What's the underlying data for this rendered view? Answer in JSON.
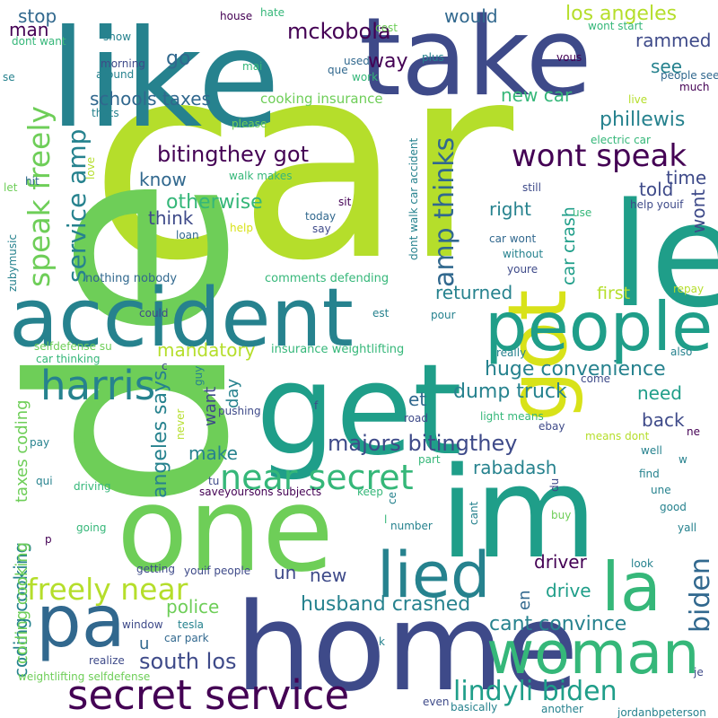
{
  "palette": {
    "dark_purple": "#440154",
    "indigo": "#3e4a89",
    "blue": "#31688e",
    "teal": "#26828e",
    "teal_green": "#1f9e89",
    "green": "#35b779",
    "light_green": "#6ece58",
    "lime": "#b5de2b",
    "yellow": "#fde725"
  },
  "words": [
    {
      "text": "car",
      "color": "#b5de2b"
    },
    {
      "text": "de",
      "color": "#6ece58"
    },
    {
      "text": "home",
      "color": "#3e4a89"
    },
    {
      "text": "one",
      "color": "#6ece58"
    },
    {
      "text": "get",
      "color": "#1f9e89"
    },
    {
      "text": "like",
      "color": "#26828e"
    },
    {
      "text": "take",
      "color": "#3e4a89"
    },
    {
      "text": "le",
      "color": "#1f9e89"
    },
    {
      "text": "im",
      "color": "#1f9e89"
    },
    {
      "text": "accident",
      "color": "#26828e"
    },
    {
      "text": "got",
      "color": "#d8e219"
    },
    {
      "text": "people",
      "color": "#1f9e89"
    },
    {
      "text": "woman",
      "color": "#35b779"
    },
    {
      "text": "pa",
      "color": "#31688e"
    },
    {
      "text": "la",
      "color": "#35b779"
    },
    {
      "text": "lied",
      "color": "#26828e"
    },
    {
      "text": "secret service",
      "color": "#440154"
    },
    {
      "text": "harris",
      "color": "#26828e"
    },
    {
      "text": "near secret",
      "color": "#35b779"
    },
    {
      "text": "speak freely",
      "color": "#6ece58"
    },
    {
      "text": "freely near",
      "color": "#b5de2b"
    },
    {
      "text": "wont speak",
      "color": "#440154"
    },
    {
      "text": "amp thinks",
      "color": "#31688e"
    },
    {
      "text": "biden",
      "color": "#31688e"
    },
    {
      "text": "lindyli biden",
      "color": "#1f9e89"
    },
    {
      "text": "service amp",
      "color": "#26828e"
    },
    {
      "text": "majors bitingthey",
      "color": "#3e4a89"
    },
    {
      "text": "bitingthey got",
      "color": "#440154"
    },
    {
      "text": "mckobola",
      "color": "#440154"
    },
    {
      "text": "south los",
      "color": "#3e4a89"
    },
    {
      "text": "husband crashed",
      "color": "#26828e"
    },
    {
      "text": "huge convenience",
      "color": "#26828e"
    },
    {
      "text": "cant convince",
      "color": "#26828e"
    },
    {
      "text": "dump truck",
      "color": "#26828e"
    },
    {
      "text": "angeles says",
      "color": "#26828e"
    },
    {
      "text": "coding cooking",
      "color": "#26828e"
    },
    {
      "text": "schools taxes",
      "color": "#31688e"
    },
    {
      "text": "phillewis",
      "color": "#26828e"
    },
    {
      "text": "los angeles",
      "color": "#b5de2b"
    },
    {
      "text": "otherwise",
      "color": "#35b779"
    },
    {
      "text": "mandatory",
      "color": "#b5de2b"
    },
    {
      "text": "rabadash",
      "color": "#26828e"
    },
    {
      "text": "returned",
      "color": "#26828e"
    },
    {
      "text": "driver",
      "color": "#440154"
    },
    {
      "text": "police",
      "color": "#6ece58"
    },
    {
      "text": "new car",
      "color": "#35b779"
    },
    {
      "text": "car crash",
      "color": "#1f9e89"
    },
    {
      "text": "first",
      "color": "#b5de2b"
    },
    {
      "text": "rammed",
      "color": "#3e4a89"
    },
    {
      "text": "would",
      "color": "#31688e"
    },
    {
      "text": "stop",
      "color": "#31688e"
    },
    {
      "text": "man",
      "color": "#440154"
    },
    {
      "text": "go",
      "color": "#31688e"
    },
    {
      "text": "way",
      "color": "#440154"
    },
    {
      "text": "see",
      "color": "#26828e"
    },
    {
      "text": "know",
      "color": "#31688e"
    },
    {
      "text": "think",
      "color": "#3e4a89"
    },
    {
      "text": "right",
      "color": "#26828e"
    },
    {
      "text": "told",
      "color": "#3e4a89"
    },
    {
      "text": "time",
      "color": "#3e4a89"
    },
    {
      "text": "wont",
      "color": "#3e4a89"
    },
    {
      "text": "need",
      "color": "#1f9e89"
    },
    {
      "text": "back",
      "color": "#3e4a89"
    },
    {
      "text": "et",
      "color": "#31688e"
    },
    {
      "text": "make",
      "color": "#26828e"
    },
    {
      "text": "day",
      "color": "#26828e"
    },
    {
      "text": "want",
      "color": "#3e4a89"
    },
    {
      "text": "new",
      "color": "#3e4a89"
    },
    {
      "text": "un",
      "color": "#3e4a89"
    },
    {
      "text": "drive",
      "color": "#1f9e89"
    },
    {
      "text": "u",
      "color": "#31688e"
    },
    {
      "text": "en",
      "color": "#31688e"
    },
    {
      "text": "taxes coding",
      "color": "#6ece58"
    },
    {
      "text": "coding cooking",
      "color": "#6ece58"
    },
    {
      "text": "cooking insurance",
      "color": "#6ece58"
    },
    {
      "text": "nothing nobody",
      "color": "#31688e"
    },
    {
      "text": "comments defending",
      "color": "#35b779"
    },
    {
      "text": "insurance weightlifting",
      "color": "#35b779"
    },
    {
      "text": "weightlifting selfdefense",
      "color": "#6ece58"
    },
    {
      "text": "selfdefense su",
      "color": "#6ece58"
    },
    {
      "text": "car thinking",
      "color": "#35b779"
    },
    {
      "text": "saveyoursons subjects",
      "color": "#440154"
    },
    {
      "text": "jordanbpeterson",
      "color": "#26828e"
    },
    {
      "text": "dont walk car accident",
      "color": "#26828e"
    },
    {
      "text": "electric car",
      "color": "#35b779"
    },
    {
      "text": "car wont",
      "color": "#31688e"
    },
    {
      "text": "walk makes",
      "color": "#35b779"
    },
    {
      "text": "light means",
      "color": "#35b779"
    },
    {
      "text": "means dont",
      "color": "#b5de2b"
    },
    {
      "text": "youif people",
      "color": "#3e4a89"
    },
    {
      "text": "help youif",
      "color": "#3e4a89"
    },
    {
      "text": "wont start",
      "color": "#35b779"
    },
    {
      "text": "people see",
      "color": "#31688e"
    },
    {
      "text": "dont want",
      "color": "#35b779"
    },
    {
      "text": "car park",
      "color": "#31688e"
    },
    {
      "text": "zubymusic",
      "color": "#26828e"
    },
    {
      "text": "house",
      "color": "#440154"
    },
    {
      "text": "hate",
      "color": "#35b779"
    },
    {
      "text": "used",
      "color": "#31688e"
    },
    {
      "text": "cest",
      "color": "#6ece58"
    },
    {
      "text": "show",
      "color": "#26828e"
    },
    {
      "text": "morning",
      "color": "#3e4a89"
    },
    {
      "text": "around",
      "color": "#26828e"
    },
    {
      "text": "mai",
      "color": "#35b779"
    },
    {
      "text": "que",
      "color": "#31688e"
    },
    {
      "text": "work",
      "color": "#35b779"
    },
    {
      "text": "plus",
      "color": "#26828e"
    },
    {
      "text": "vous",
      "color": "#440154"
    },
    {
      "text": "much",
      "color": "#440154"
    },
    {
      "text": "live",
      "color": "#b5de2b"
    },
    {
      "text": "thats",
      "color": "#26828e"
    },
    {
      "text": "please",
      "color": "#6ece58"
    },
    {
      "text": "love",
      "color": "#b5de2b"
    },
    {
      "text": "hit",
      "color": "#31688e"
    },
    {
      "text": "let",
      "color": "#6ece58"
    },
    {
      "text": "still",
      "color": "#3e4a89"
    },
    {
      "text": "sit",
      "color": "#440154"
    },
    {
      "text": "today",
      "color": "#31688e"
    },
    {
      "text": "say",
      "color": "#3e4a89"
    },
    {
      "text": "help",
      "color": "#d8e219"
    },
    {
      "text": "loan",
      "color": "#31688e"
    },
    {
      "text": "use",
      "color": "#35b779"
    },
    {
      "text": "without",
      "color": "#26828e"
    },
    {
      "text": "youre",
      "color": "#3e4a89"
    },
    {
      "text": "repay",
      "color": "#b5de2b"
    },
    {
      "text": "could",
      "color": "#3e4a89"
    },
    {
      "text": "est",
      "color": "#26828e"
    },
    {
      "text": "pour",
      "color": "#26828e"
    },
    {
      "text": "really",
      "color": "#26828e"
    },
    {
      "text": "also",
      "color": "#26828e"
    },
    {
      "text": "guy",
      "color": "#26828e"
    },
    {
      "text": "come",
      "color": "#3e4a89"
    },
    {
      "text": "pushing",
      "color": "#3e4a89"
    },
    {
      "text": "f",
      "color": "#3e4a89"
    },
    {
      "text": "road",
      "color": "#3e4a89"
    },
    {
      "text": "ebay",
      "color": "#3e4a89"
    },
    {
      "text": "never",
      "color": "#b5de2b"
    },
    {
      "text": "made",
      "color": "#6ece58"
    },
    {
      "text": "pay",
      "color": "#26828e"
    },
    {
      "text": "part",
      "color": "#35b779"
    },
    {
      "text": "ne",
      "color": "#440154"
    },
    {
      "text": "well",
      "color": "#26828e"
    },
    {
      "text": "w",
      "color": "#26828e"
    },
    {
      "text": "find",
      "color": "#26828e"
    },
    {
      "text": "une",
      "color": "#26828e"
    },
    {
      "text": "qui",
      "color": "#26828e"
    },
    {
      "text": "driving",
      "color": "#35b779"
    },
    {
      "text": "tu",
      "color": "#3e4a89"
    },
    {
      "text": "keep",
      "color": "#35b779"
    },
    {
      "text": "ce",
      "color": "#26828e"
    },
    {
      "text": "du",
      "color": "#3e4a89"
    },
    {
      "text": "cant",
      "color": "#26828e"
    },
    {
      "text": "good",
      "color": "#26828e"
    },
    {
      "text": "yall",
      "color": "#26828e"
    },
    {
      "text": "p",
      "color": "#440154"
    },
    {
      "text": "going",
      "color": "#35b779"
    },
    {
      "text": "l",
      "color": "#35b779"
    },
    {
      "text": "number",
      "color": "#26828e"
    },
    {
      "text": "buy",
      "color": "#6ece58"
    },
    {
      "text": "getting",
      "color": "#3e4a89"
    },
    {
      "text": "look",
      "color": "#26828e"
    },
    {
      "text": "window",
      "color": "#3e4a89"
    },
    {
      "text": "tesla",
      "color": "#26828e"
    },
    {
      "text": "k",
      "color": "#26828e"
    },
    {
      "text": "realize",
      "color": "#3e4a89"
    },
    {
      "text": "je",
      "color": "#3e4a89"
    },
    {
      "text": "even",
      "color": "#3e4a89"
    },
    {
      "text": "basically",
      "color": "#26828e"
    },
    {
      "text": "another",
      "color": "#26828e"
    },
    {
      "text": "se",
      "color": "#26828e"
    },
    {
      "text": "c",
      "color": "#3e4a89"
    }
  ]
}
